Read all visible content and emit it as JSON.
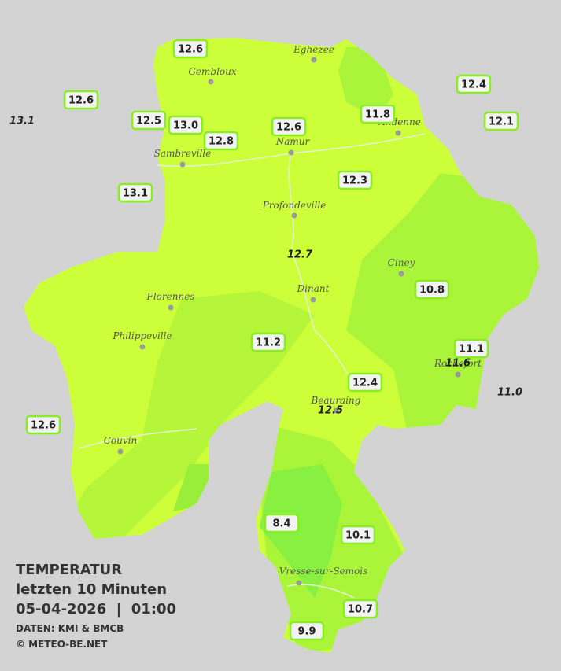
{
  "legend": {
    "heading": "TEMPERATUR",
    "subtitle": "letzten 10 Minuten",
    "datetime": "05-04-2026  |  01:00",
    "source": "DATEN: KMI & BMCB",
    "copyright": "© METEO-BE.NET"
  },
  "towns": [
    "Eghezee",
    "Gembloux",
    "Andenne",
    "Namur",
    "Sambreville",
    "Profondeville",
    "Ciney",
    "Dinant",
    "Florennes",
    "Philippeville",
    "Rochefort",
    "Beauraing",
    "Couvin",
    "Vresse-sur-Semois"
  ],
  "stations": [
    "12.6",
    "12.6",
    "13.1",
    "12.5",
    "13.0",
    "12.8",
    "12.6",
    "11.8",
    "12.4",
    "12.1",
    "13.1",
    "12.3",
    "12.7",
    "10.8",
    "11.2",
    "11.1",
    "11.6",
    "11.0",
    "12.4",
    "12.5",
    "12.6",
    "8.4",
    "10.1",
    "10.7",
    "9.9"
  ]
}
